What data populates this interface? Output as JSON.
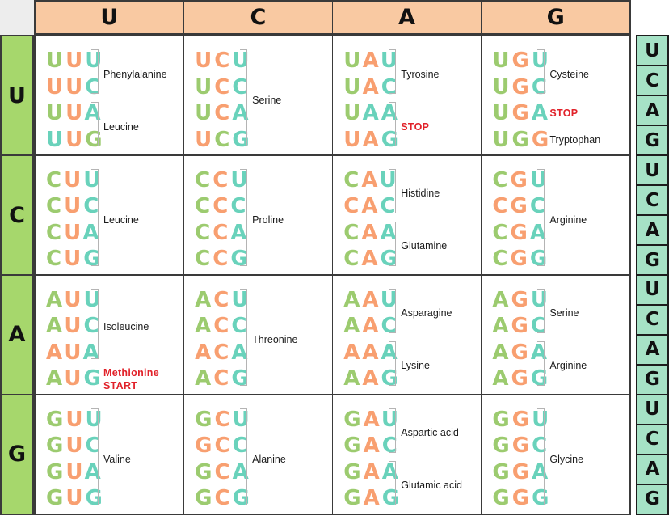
{
  "palette": {
    "codon_green": "#9ccb6f",
    "codon_orange": "#f89f70",
    "codon_teal": "#69d2bb",
    "stop_start_red": "#e1222a",
    "header_bg": "#f9c9a2",
    "left_col_bg": "#a6d76c",
    "right_col_bg": "#a6e2c6",
    "corner_bg": "#ededed",
    "border": "#3a3a3a",
    "bracket": "#b4b4b4",
    "label_text": "#1a1a1a"
  },
  "top_header": [
    "U",
    "C",
    "A",
    "G"
  ],
  "left_header": [
    "U",
    "C",
    "A",
    "G"
  ],
  "right_column": [
    "U",
    "C",
    "A",
    "G",
    "U",
    "C",
    "A",
    "G",
    "U",
    "C",
    "A",
    "G",
    "U",
    "C",
    "A",
    "G"
  ],
  "cells": [
    {
      "row": "U",
      "col": "U",
      "codons": [
        {
          "t": "UUU",
          "c": "got"
        },
        {
          "t": "UUC",
          "c": "oot"
        },
        {
          "t": "UUA",
          "c": "got"
        },
        {
          "t": "UUG",
          "c": "tog"
        }
      ],
      "groups": [
        {
          "label": "Phenylalanine",
          "start": 0,
          "span": 2,
          "bracket": true
        },
        {
          "label": "Leucine",
          "start": 2,
          "span": 2,
          "bracket": true
        }
      ]
    },
    {
      "row": "U",
      "col": "C",
      "codons": [
        {
          "t": "UCU",
          "c": "oot"
        },
        {
          "t": "UCC",
          "c": "got"
        },
        {
          "t": "UCA",
          "c": "got"
        },
        {
          "t": "UCG",
          "c": "ogt"
        }
      ],
      "groups": [
        {
          "label": "Serine",
          "start": 0,
          "span": 4,
          "bracket": true
        }
      ]
    },
    {
      "row": "U",
      "col": "A",
      "codons": [
        {
          "t": "UAU",
          "c": "got"
        },
        {
          "t": "UAC",
          "c": "got"
        },
        {
          "t": "UAA",
          "c": "gtt"
        },
        {
          "t": "UAG",
          "c": "oot"
        }
      ],
      "groups": [
        {
          "label": "Tyrosine",
          "start": 0,
          "span": 2,
          "bracket": true
        },
        {
          "label": "STOP",
          "start": 2,
          "span": 2,
          "bracket": true,
          "red": true
        }
      ]
    },
    {
      "row": "U",
      "col": "G",
      "codons": [
        {
          "t": "UGU",
          "c": "got"
        },
        {
          "t": "UGC",
          "c": "got"
        },
        {
          "t": "UGA",
          "c": "got"
        },
        {
          "t": "UGG",
          "c": "ggo"
        }
      ],
      "groups": [
        {
          "label": "Cysteine",
          "start": 0,
          "span": 2,
          "bracket": true
        },
        {
          "label": "STOP",
          "start": 2,
          "span": 1,
          "bracket": false,
          "red": true
        },
        {
          "label": "Tryptophan",
          "start": 3,
          "span": 1,
          "bracket": false
        }
      ]
    },
    {
      "row": "C",
      "col": "U",
      "codons": [
        {
          "t": "CUU",
          "c": "got"
        },
        {
          "t": "CUC",
          "c": "got"
        },
        {
          "t": "CUA",
          "c": "got"
        },
        {
          "t": "CUG",
          "c": "got"
        }
      ],
      "groups": [
        {
          "label": "Leucine",
          "start": 0,
          "span": 4,
          "bracket": true
        }
      ]
    },
    {
      "row": "C",
      "col": "C",
      "codons": [
        {
          "t": "CCU",
          "c": "got"
        },
        {
          "t": "CCC",
          "c": "got"
        },
        {
          "t": "CCA",
          "c": "got"
        },
        {
          "t": "CCG",
          "c": "got"
        }
      ],
      "groups": [
        {
          "label": "Proline",
          "start": 0,
          "span": 4,
          "bracket": true
        }
      ]
    },
    {
      "row": "C",
      "col": "A",
      "codons": [
        {
          "t": "CAU",
          "c": "got"
        },
        {
          "t": "CAC",
          "c": "oot"
        },
        {
          "t": "CAA",
          "c": "got"
        },
        {
          "t": "CAG",
          "c": "got"
        }
      ],
      "groups": [
        {
          "label": "Histidine",
          "start": 0,
          "span": 2,
          "bracket": true
        },
        {
          "label": "Glutamine",
          "start": 2,
          "span": 2,
          "bracket": true
        }
      ]
    },
    {
      "row": "C",
      "col": "G",
      "codons": [
        {
          "t": "CGU",
          "c": "got"
        },
        {
          "t": "CGC",
          "c": "oot"
        },
        {
          "t": "CGA",
          "c": "got"
        },
        {
          "t": "CGG",
          "c": "got"
        }
      ],
      "groups": [
        {
          "label": "Arginine",
          "start": 0,
          "span": 4,
          "bracket": true
        }
      ]
    },
    {
      "row": "A",
      "col": "U",
      "codons": [
        {
          "t": "AUU",
          "c": "got"
        },
        {
          "t": "AUC",
          "c": "got"
        },
        {
          "t": "AUA",
          "c": "oot"
        },
        {
          "t": "AUG",
          "c": "got"
        }
      ],
      "groups": [
        {
          "label": "Isoleucine",
          "start": 0,
          "span": 3,
          "bracket": true
        },
        {
          "label": "Methionine",
          "label2": "START",
          "start": 3,
          "span": 1,
          "bracket": false,
          "red": true
        }
      ]
    },
    {
      "row": "A",
      "col": "C",
      "codons": [
        {
          "t": "ACU",
          "c": "got"
        },
        {
          "t": "ACC",
          "c": "got"
        },
        {
          "t": "ACA",
          "c": "oot"
        },
        {
          "t": "ACG",
          "c": "got"
        }
      ],
      "groups": [
        {
          "label": "Threonine",
          "start": 0,
          "span": 4,
          "bracket": true
        }
      ]
    },
    {
      "row": "A",
      "col": "A",
      "codons": [
        {
          "t": "AAU",
          "c": "got"
        },
        {
          "t": "AAC",
          "c": "got"
        },
        {
          "t": "AAA",
          "c": "oot"
        },
        {
          "t": "AAG",
          "c": "got"
        }
      ],
      "groups": [
        {
          "label": "Asparagine",
          "start": 0,
          "span": 2,
          "bracket": true
        },
        {
          "label": "Lysine",
          "start": 2,
          "span": 2,
          "bracket": true
        }
      ]
    },
    {
      "row": "A",
      "col": "G",
      "codons": [
        {
          "t": "AGU",
          "c": "got"
        },
        {
          "t": "AGC",
          "c": "got"
        },
        {
          "t": "AGA",
          "c": "got"
        },
        {
          "t": "AGG",
          "c": "got"
        }
      ],
      "groups": [
        {
          "label": "Serine",
          "start": 0,
          "span": 2,
          "bracket": true
        },
        {
          "label": "Arginine",
          "start": 2,
          "span": 2,
          "bracket": true
        }
      ]
    },
    {
      "row": "G",
      "col": "U",
      "codons": [
        {
          "t": "GUU",
          "c": "got"
        },
        {
          "t": "GUC",
          "c": "got"
        },
        {
          "t": "GUA",
          "c": "got"
        },
        {
          "t": "GUG",
          "c": "got"
        }
      ],
      "groups": [
        {
          "label": "Valine",
          "start": 0,
          "span": 4,
          "bracket": true
        }
      ]
    },
    {
      "row": "G",
      "col": "C",
      "codons": [
        {
          "t": "GCU",
          "c": "got"
        },
        {
          "t": "GCC",
          "c": "oot"
        },
        {
          "t": "GCA",
          "c": "got"
        },
        {
          "t": "GCG",
          "c": "got"
        }
      ],
      "groups": [
        {
          "label": "Alanine",
          "start": 0,
          "span": 4,
          "bracket": true
        }
      ]
    },
    {
      "row": "G",
      "col": "A",
      "codons": [
        {
          "t": "GAU",
          "c": "got"
        },
        {
          "t": "GAC",
          "c": "got"
        },
        {
          "t": "GAA",
          "c": "got"
        },
        {
          "t": "GAG",
          "c": "got"
        }
      ],
      "groups": [
        {
          "label": "Aspartic acid",
          "start": 0,
          "span": 2,
          "bracket": true
        },
        {
          "label": "Glutamic acid",
          "start": 2,
          "span": 2,
          "bracket": true
        }
      ]
    },
    {
      "row": "G",
      "col": "G",
      "codons": [
        {
          "t": "GGU",
          "c": "got"
        },
        {
          "t": "GGC",
          "c": "got"
        },
        {
          "t": "GGA",
          "c": "got"
        },
        {
          "t": "GGG",
          "c": "got"
        }
      ],
      "groups": [
        {
          "label": "Glycine",
          "start": 0,
          "span": 4,
          "bracket": true
        }
      ]
    }
  ]
}
